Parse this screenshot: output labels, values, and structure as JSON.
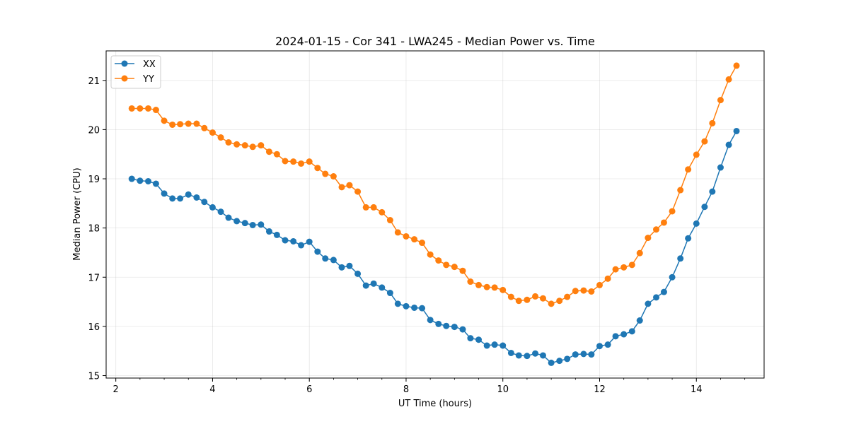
{
  "chart_data": {
    "type": "line",
    "title": "2024-01-15 - Cor 341 - LWA245 - Median Power vs. Time",
    "xlabel": "UT Time (hours)",
    "ylabel": "Median Power (CPU)",
    "xlim": [
      1.8,
      15.4
    ],
    "ylim": [
      14.95,
      21.6
    ],
    "xticks": [
      2,
      4,
      6,
      8,
      10,
      12,
      14
    ],
    "yticks": [
      15,
      16,
      17,
      18,
      19,
      20,
      21
    ],
    "grid": true,
    "legend_position": "top-left",
    "x": [
      2.33,
      2.5,
      2.67,
      2.83,
      3.0,
      3.17,
      3.33,
      3.5,
      3.67,
      3.83,
      4.0,
      4.17,
      4.33,
      4.5,
      4.67,
      4.83,
      5.0,
      5.17,
      5.33,
      5.5,
      5.67,
      5.83,
      6.0,
      6.17,
      6.33,
      6.5,
      6.67,
      6.83,
      7.0,
      7.17,
      7.33,
      7.5,
      7.67,
      7.83,
      8.0,
      8.17,
      8.33,
      8.5,
      8.67,
      8.83,
      9.0,
      9.17,
      9.33,
      9.5,
      9.67,
      9.83,
      10.0,
      10.17,
      10.33,
      10.5,
      10.67,
      10.83,
      11.0,
      11.17,
      11.33,
      11.5,
      11.67,
      11.83,
      12.0,
      12.17,
      12.33,
      12.5,
      12.67,
      12.83,
      13.0,
      13.17,
      13.33,
      13.5,
      13.67,
      13.83,
      14.0,
      14.17,
      14.33,
      14.5,
      14.67,
      14.83
    ],
    "series": [
      {
        "name": "XX",
        "color": "#1f77b4",
        "values": [
          19.0,
          18.96,
          18.95,
          18.9,
          18.7,
          18.6,
          18.6,
          18.68,
          18.62,
          18.53,
          18.42,
          18.33,
          18.21,
          18.14,
          18.1,
          18.06,
          18.07,
          17.93,
          17.86,
          17.75,
          17.73,
          17.65,
          17.72,
          17.52,
          17.38,
          17.35,
          17.2,
          17.23,
          17.07,
          16.83,
          16.87,
          16.79,
          16.68,
          16.46,
          16.41,
          16.38,
          16.37,
          16.13,
          16.05,
          16.01,
          15.99,
          15.94,
          15.76,
          15.73,
          15.61,
          15.63,
          15.61,
          15.46,
          15.41,
          15.4,
          15.45,
          15.41,
          15.26,
          15.3,
          15.34,
          15.43,
          15.44,
          15.43,
          15.6,
          15.63,
          15.8,
          15.84,
          15.9,
          16.12,
          16.46,
          16.59,
          16.7,
          17.0,
          17.38,
          17.79,
          18.09,
          18.43,
          18.74,
          19.23,
          19.69,
          19.97
        ]
      },
      {
        "name": "YY",
        "color": "#ff7f0e",
        "values": [
          20.43,
          20.43,
          20.43,
          20.4,
          20.18,
          20.1,
          20.11,
          20.12,
          20.12,
          20.03,
          19.94,
          19.84,
          19.74,
          19.7,
          19.68,
          19.65,
          19.68,
          19.55,
          19.5,
          19.36,
          19.35,
          19.31,
          19.35,
          19.22,
          19.1,
          19.05,
          18.83,
          18.87,
          18.74,
          18.42,
          18.42,
          18.32,
          18.16,
          17.91,
          17.83,
          17.77,
          17.7,
          17.46,
          17.34,
          17.25,
          17.21,
          17.13,
          16.91,
          16.84,
          16.8,
          16.79,
          16.74,
          16.6,
          16.52,
          16.54,
          16.61,
          16.57,
          16.46,
          16.52,
          16.6,
          16.72,
          16.73,
          16.71,
          16.84,
          16.97,
          17.16,
          17.2,
          17.25,
          17.49,
          17.8,
          17.97,
          18.11,
          18.34,
          18.77,
          19.19,
          19.49,
          19.76,
          20.13,
          20.6,
          21.02,
          21.3
        ]
      }
    ]
  }
}
